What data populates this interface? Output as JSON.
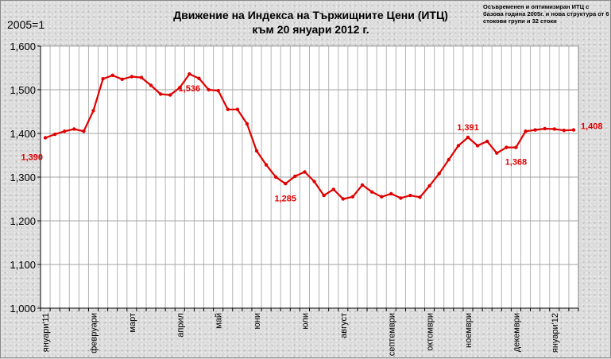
{
  "chart_data": {
    "type": "line",
    "title": "Движение на Индекса на Тържищните Цени (ИТЦ)",
    "subtitle": "към 20 януари 2012 г.",
    "unit_label": "2005=1",
    "note": "Осъвременен и оптимизиран ИТЦ с базова година 2005г. и нова структура от 6 стокови групи и 32 стоки",
    "ylim": [
      1.0,
      1.6
    ],
    "yticks": [
      1.0,
      1.1,
      1.2,
      1.3,
      1.4,
      1.5,
      1.6
    ],
    "ytick_labels": [
      "1,000",
      "1,100",
      "1,200",
      "1,300",
      "1,400",
      "1,500",
      "1,600"
    ],
    "grid": true,
    "line_color": "#e00000",
    "x_labels": [
      {
        "index": 0,
        "label": "януари'11"
      },
      {
        "index": 5,
        "label": "февруари"
      },
      {
        "index": 9,
        "label": "март"
      },
      {
        "index": 14,
        "label": "април"
      },
      {
        "index": 18,
        "label": "май"
      },
      {
        "index": 22,
        "label": "юни"
      },
      {
        "index": 27,
        "label": "юли"
      },
      {
        "index": 31,
        "label": "август"
      },
      {
        "index": 36,
        "label": "септември"
      },
      {
        "index": 40,
        "label": "октомври"
      },
      {
        "index": 44,
        "label": "ноември"
      },
      {
        "index": 49,
        "label": "декември"
      },
      {
        "index": 53,
        "label": "януари'12"
      }
    ],
    "values": [
      1.39,
      1.398,
      1.405,
      1.41,
      1.405,
      1.452,
      1.525,
      1.533,
      1.524,
      1.53,
      1.528,
      1.51,
      1.49,
      1.488,
      1.505,
      1.536,
      1.526,
      1.5,
      1.498,
      1.455,
      1.455,
      1.422,
      1.36,
      1.328,
      1.3,
      1.285,
      1.302,
      1.312,
      1.29,
      1.258,
      1.272,
      1.25,
      1.255,
      1.282,
      1.266,
      1.255,
      1.262,
      1.252,
      1.258,
      1.254,
      1.28,
      1.308,
      1.34,
      1.372,
      1.391,
      1.372,
      1.382,
      1.355,
      1.368,
      1.368,
      1.405,
      1.408,
      1.411,
      1.41,
      1.407,
      1.408
    ],
    "annotations": [
      {
        "index": 0,
        "label": "1,390",
        "pos": "below-left"
      },
      {
        "index": 15,
        "label": "1,536",
        "pos": "below"
      },
      {
        "index": 25,
        "label": "1,285",
        "pos": "below"
      },
      {
        "index": 44,
        "label": "1,391",
        "pos": "above"
      },
      {
        "index": 49,
        "label": "1,368",
        "pos": "below"
      },
      {
        "index": 55,
        "label": "1,408",
        "pos": "right"
      }
    ]
  }
}
